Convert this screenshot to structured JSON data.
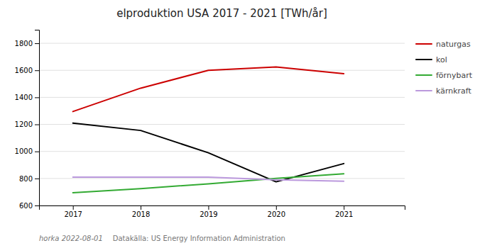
{
  "chart_data": {
    "type": "line",
    "title": "elproduktion USA 2017 - 2021 [TWh/år]",
    "x": [
      2017,
      2018,
      2019,
      2020,
      2021
    ],
    "series": [
      {
        "name": "naturgas",
        "color": "#cc0000",
        "values": [
          1295,
          1468,
          1600,
          1625,
          1575
        ]
      },
      {
        "name": "kol",
        "color": "#000000",
        "values": [
          1210,
          1155,
          990,
          775,
          910
        ]
      },
      {
        "name": "förnybart",
        "color": "#33aa33",
        "values": [
          695,
          725,
          760,
          800,
          835
        ]
      },
      {
        "name": "kärnkraft",
        "color": "#bb99dd",
        "values": [
          810,
          810,
          810,
          790,
          780
        ]
      }
    ],
    "xlim": [
      2016.5,
      2021.9
    ],
    "xticks": [
      2017,
      2018,
      2019,
      2020,
      2021
    ],
    "ylim": [
      600,
      1900
    ],
    "yticks": [
      600,
      800,
      1000,
      1200,
      1400,
      1600,
      1800
    ],
    "grid": true,
    "legend": "right",
    "annotations": [
      "horka 2022-08-01",
      "Datakälla: US Energy Information Administration"
    ]
  }
}
